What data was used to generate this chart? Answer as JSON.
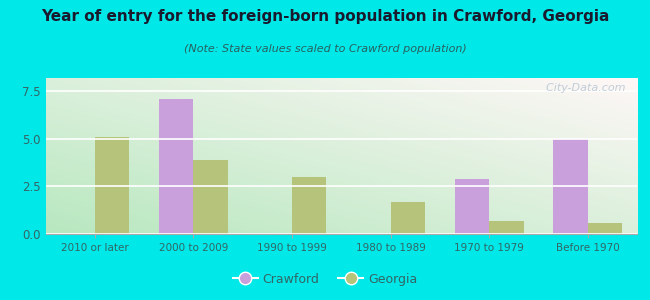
{
  "title": "Year of entry for the foreign-born population in Crawford, Georgia",
  "subtitle": "(Note: State values scaled to Crawford population)",
  "categories": [
    "2010 or later",
    "2000 to 2009",
    "1990 to 1999",
    "1980 to 1989",
    "1970 to 1979",
    "Before 1970"
  ],
  "crawford_values": [
    0,
    7.1,
    0,
    0,
    2.9,
    5.0
  ],
  "georgia_values": [
    5.1,
    3.9,
    3.0,
    1.7,
    0.7,
    0.6
  ],
  "crawford_color": "#c9a0dc",
  "georgia_color": "#b5c47a",
  "background_outer": "#00e8e8",
  "ylim": [
    0,
    8.2
  ],
  "yticks": [
    0,
    2.5,
    5,
    7.5
  ],
  "bar_width": 0.35,
  "watermark": "  City-Data.com",
  "legend_crawford": "Crawford",
  "legend_georgia": "Georgia",
  "title_color": "#1a1a2e",
  "subtitle_color": "#2a6060",
  "tick_color": "#336666"
}
